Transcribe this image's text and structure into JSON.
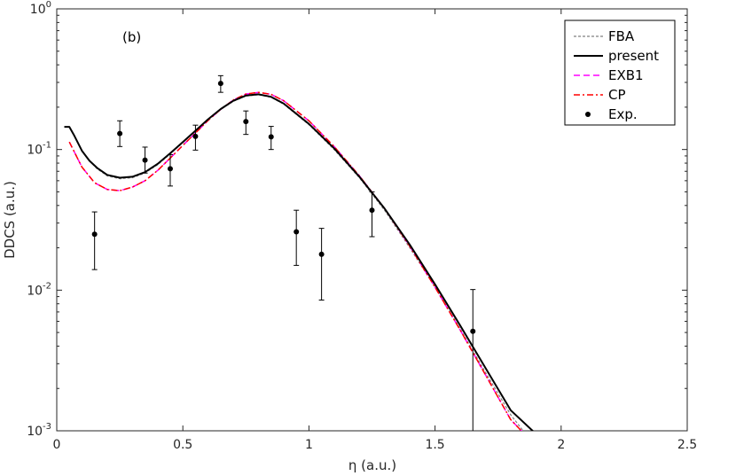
{
  "chart_data": {
    "type": "line",
    "panel_label": "(b)",
    "xlabel": "η (a.u.)",
    "ylabel": "DDCS (a.u.)",
    "xlim": [
      0,
      2.5
    ],
    "ylim": [
      0.001,
      1
    ],
    "y_scale": "log",
    "grid": false,
    "legend_position": "top-right",
    "x_ticks": [
      {
        "value": 0,
        "label": "0"
      },
      {
        "value": 0.5,
        "label": "0.5"
      },
      {
        "value": 1,
        "label": "1"
      },
      {
        "value": 1.5,
        "label": "1.5"
      },
      {
        "value": 2,
        "label": "2"
      },
      {
        "value": 2.5,
        "label": "2.5"
      }
    ],
    "y_ticks": [
      {
        "value": 0.001,
        "base": "10",
        "exp": "-3"
      },
      {
        "value": 0.01,
        "base": "10",
        "exp": "-2"
      },
      {
        "value": 0.1,
        "base": "10",
        "exp": "-1"
      },
      {
        "value": 1,
        "base": "10",
        "exp": "0"
      }
    ],
    "series": [
      {
        "name": "FBA",
        "style": "dotted",
        "color": "#808080",
        "x": [
          0.03,
          0.05,
          0.07,
          0.1,
          0.13,
          0.16,
          0.2,
          0.25,
          0.3,
          0.35,
          0.4,
          0.45,
          0.5,
          0.55,
          0.6,
          0.65,
          0.7,
          0.75,
          0.8,
          0.85,
          0.9,
          1.0,
          1.1,
          1.2,
          1.3,
          1.4,
          1.5,
          1.6,
          1.7,
          1.8,
          1.88
        ],
        "y": [
          0.145,
          0.145,
          0.125,
          0.098,
          0.083,
          0.073,
          0.065,
          0.062,
          0.063,
          0.068,
          0.078,
          0.093,
          0.112,
          0.135,
          0.163,
          0.193,
          0.22,
          0.24,
          0.245,
          0.235,
          0.21,
          0.15,
          0.1,
          0.063,
          0.037,
          0.02,
          0.0105,
          0.0053,
          0.0026,
          0.0013,
          0.00085
        ]
      },
      {
        "name": "present",
        "style": "solid",
        "color": "#000000",
        "x": [
          0.03,
          0.05,
          0.07,
          0.1,
          0.13,
          0.16,
          0.2,
          0.25,
          0.3,
          0.35,
          0.4,
          0.45,
          0.5,
          0.55,
          0.6,
          0.65,
          0.7,
          0.75,
          0.8,
          0.85,
          0.9,
          1.0,
          1.1,
          1.2,
          1.3,
          1.4,
          1.5,
          1.6,
          1.7,
          1.8,
          1.9
        ],
        "y": [
          0.145,
          0.145,
          0.125,
          0.098,
          0.083,
          0.074,
          0.066,
          0.063,
          0.064,
          0.069,
          0.079,
          0.094,
          0.113,
          0.136,
          0.164,
          0.194,
          0.222,
          0.242,
          0.247,
          0.237,
          0.212,
          0.152,
          0.102,
          0.064,
          0.038,
          0.021,
          0.011,
          0.0056,
          0.0028,
          0.0014,
          0.00095
        ]
      },
      {
        "name": "EXB1",
        "style": "dashed",
        "color": "#ff00ff",
        "x": [
          0.05,
          0.1,
          0.15,
          0.2,
          0.25,
          0.3,
          0.35,
          0.4,
          0.45,
          0.5,
          0.55,
          0.6,
          0.65,
          0.7,
          0.75,
          0.8,
          0.85,
          0.9,
          1.0,
          1.1,
          1.2,
          1.3,
          1.4,
          1.5,
          1.6,
          1.7,
          1.8,
          1.88
        ],
        "y": [
          0.113,
          0.075,
          0.058,
          0.052,
          0.051,
          0.054,
          0.06,
          0.071,
          0.087,
          0.107,
          0.131,
          0.161,
          0.193,
          0.225,
          0.248,
          0.255,
          0.247,
          0.222,
          0.16,
          0.105,
          0.065,
          0.038,
          0.0205,
          0.0105,
          0.0052,
          0.0025,
          0.0012,
          0.00085
        ]
      },
      {
        "name": "CP",
        "style": "dashdot",
        "color": "#ff0000",
        "x": [
          0.05,
          0.1,
          0.15,
          0.2,
          0.25,
          0.3,
          0.35,
          0.4,
          0.45,
          0.5,
          0.55,
          0.6,
          0.65,
          0.7,
          0.75,
          0.8,
          0.85,
          0.9,
          1.0,
          1.1,
          1.2,
          1.3,
          1.4,
          1.5,
          1.6,
          1.7,
          1.8,
          1.88
        ],
        "y": [
          0.113,
          0.075,
          0.058,
          0.052,
          0.051,
          0.054,
          0.06,
          0.071,
          0.087,
          0.107,
          0.131,
          0.161,
          0.193,
          0.225,
          0.248,
          0.255,
          0.247,
          0.222,
          0.16,
          0.105,
          0.065,
          0.038,
          0.0205,
          0.0105,
          0.0052,
          0.0025,
          0.0012,
          0.00085
        ]
      }
    ],
    "experiment": {
      "name": "Exp.",
      "color": "#000000",
      "points": [
        {
          "x": 0.15,
          "y": 0.025,
          "ylo": 0.014,
          "yhi": 0.036
        },
        {
          "x": 0.25,
          "y": 0.13,
          "ylo": 0.105,
          "yhi": 0.16
        },
        {
          "x": 0.35,
          "y": 0.084,
          "ylo": 0.068,
          "yhi": 0.104
        },
        {
          "x": 0.45,
          "y": 0.073,
          "ylo": 0.055,
          "yhi": 0.092
        },
        {
          "x": 0.55,
          "y": 0.124,
          "ylo": 0.099,
          "yhi": 0.149
        },
        {
          "x": 0.65,
          "y": 0.295,
          "ylo": 0.255,
          "yhi": 0.335
        },
        {
          "x": 0.75,
          "y": 0.158,
          "ylo": 0.128,
          "yhi": 0.188
        },
        {
          "x": 0.85,
          "y": 0.123,
          "ylo": 0.1,
          "yhi": 0.146
        },
        {
          "x": 0.95,
          "y": 0.026,
          "ylo": 0.015,
          "yhi": 0.037
        },
        {
          "x": 1.05,
          "y": 0.018,
          "ylo": 0.0085,
          "yhi": 0.0275
        },
        {
          "x": 1.25,
          "y": 0.037,
          "ylo": 0.024,
          "yhi": 0.05
        },
        {
          "x": 1.65,
          "y": 0.0051,
          "ylo": 0.0005,
          "yhi": 0.0101
        }
      ]
    }
  }
}
